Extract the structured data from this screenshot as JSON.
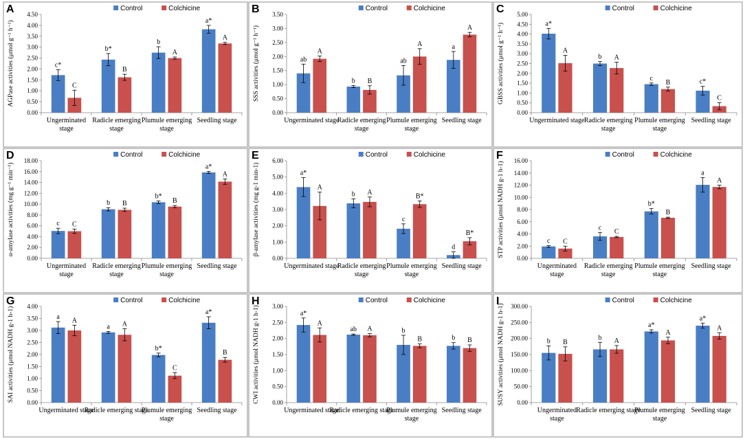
{
  "figure": {
    "colors": {
      "control": "#4a7ec4",
      "colchicine": "#c8504d",
      "axis": "#888888",
      "frame": "#8c8c8c"
    },
    "legend": {
      "control_label": "Control",
      "colchicine_label": "Colchicine"
    }
  },
  "chart_data": [
    {
      "panel": "A",
      "type": "bar",
      "ylabel": "AGPase activities (μmol g⁻¹ h⁻¹)",
      "ylim": [
        0,
        4.5
      ],
      "ystep": 0.5,
      "ydecimals": 2,
      "categories": [
        [
          "Ungerminated",
          "stage"
        ],
        [
          "Radicle emerging",
          "stage"
        ],
        [
          "Plumule emerging",
          "stage"
        ],
        [
          "Seedling stage"
        ]
      ],
      "series": [
        {
          "name": "Control",
          "values": [
            1.72,
            2.43,
            2.75,
            3.82
          ],
          "errors": [
            0.25,
            0.28,
            0.27,
            0.18
          ],
          "labels": [
            "c*",
            "b*",
            "b",
            "a*"
          ]
        },
        {
          "name": "Colchicine",
          "values": [
            0.68,
            1.62,
            2.5,
            3.17
          ],
          "errors": [
            0.35,
            0.14,
            0.05,
            0.05
          ],
          "labels": [
            "C",
            "B",
            "A",
            "A"
          ]
        }
      ]
    },
    {
      "panel": "B",
      "type": "bar",
      "ylabel": "SSS activities (μmol g⁻¹ h⁻¹)",
      "ylim": [
        0,
        3.5
      ],
      "ystep": 0.5,
      "ydecimals": 2,
      "categories": [
        [
          "Ungerminated stage"
        ],
        [
          "Radicle emerging",
          "stage"
        ],
        [
          "Plumule emerging",
          "stage"
        ],
        [
          "Seedling stage"
        ]
      ],
      "series": [
        {
          "name": "Control",
          "values": [
            1.4,
            0.93,
            1.33,
            1.88
          ],
          "errors": [
            0.33,
            0.04,
            0.35,
            0.3
          ],
          "labels": [
            "ab",
            "b",
            "ab",
            "a"
          ]
        },
        {
          "name": "Colchicine",
          "values": [
            1.92,
            0.81,
            2.0,
            2.78
          ],
          "errors": [
            0.1,
            0.15,
            0.28,
            0.08
          ],
          "labels": [
            "A",
            "B",
            "A",
            "A"
          ]
        }
      ]
    },
    {
      "panel": "C",
      "type": "bar",
      "ylabel": "GBSS activities (μmol g⁻¹ h⁻¹)",
      "ylim": [
        0,
        5
      ],
      "ystep": 0.5,
      "ydecimals": 2,
      "categories": [
        [
          "Ungerminated stage"
        ],
        [
          "Radicle emerging",
          "stage"
        ],
        [
          "Plumule emerging",
          "stage"
        ],
        [
          "Seedling stage"
        ]
      ],
      "series": [
        {
          "name": "Control",
          "values": [
            4.02,
            2.5,
            1.45,
            1.12
          ],
          "errors": [
            0.27,
            0.1,
            0.06,
            0.22
          ],
          "labels": [
            "a*",
            "b",
            "c",
            "c*"
          ]
        },
        {
          "name": "Colchicine",
          "values": [
            2.52,
            2.27,
            1.2,
            0.33
          ],
          "errors": [
            0.4,
            0.3,
            0.1,
            0.18
          ],
          "labels": [
            "A",
            "A",
            "B",
            "C"
          ]
        }
      ]
    },
    {
      "panel": "D",
      "type": "bar",
      "ylabel": "α-amylase activities (mg g⁻¹ min⁻¹)",
      "ylim": [
        0,
        18
      ],
      "ystep": 2,
      "ydecimals": 2,
      "categories": [
        [
          "Ungerminated",
          "stage"
        ],
        [
          "Radicle emerging",
          "stage"
        ],
        [
          "Plumule emerging",
          "stage"
        ],
        [
          "Seedling stage"
        ]
      ],
      "series": [
        {
          "name": "Control",
          "values": [
            5.05,
            9.05,
            10.35,
            15.85
          ],
          "errors": [
            0.5,
            0.3,
            0.25,
            0.2
          ],
          "labels": [
            "c",
            "b",
            "b*",
            "a*"
          ]
        },
        {
          "name": "Colchicine",
          "values": [
            5.0,
            8.95,
            9.55,
            14.15
          ],
          "errors": [
            0.4,
            0.3,
            0.2,
            0.5
          ],
          "labels": [
            "C",
            "B",
            "B",
            "A"
          ]
        }
      ]
    },
    {
      "panel": "E",
      "type": "bar",
      "ylabel": "β-amylase activities (mg g-1 min-1)",
      "ylim": [
        0,
        6
      ],
      "ystep": 1,
      "ydecimals": 2,
      "categories": [
        [
          "Ungerminated stage"
        ],
        [
          "Radicle emerging",
          "stage"
        ],
        [
          "Plumule emerging",
          "stage"
        ],
        [
          "Seedling stage"
        ]
      ],
      "series": [
        {
          "name": "Control",
          "values": [
            4.38,
            3.38,
            1.82,
            0.2
          ],
          "errors": [
            0.58,
            0.28,
            0.3,
            0.2
          ],
          "labels": [
            "a*",
            "b",
            "c",
            "d"
          ]
        },
        {
          "name": "Colchicine",
          "values": [
            3.22,
            3.47,
            3.33,
            1.05
          ],
          "errors": [
            0.85,
            0.3,
            0.2,
            0.22
          ],
          "labels": [
            "A",
            "A",
            "B*",
            "B*"
          ]
        }
      ]
    },
    {
      "panel": "F",
      "type": "bar",
      "ylabel": "STP activities (μmol NADH g-1 h-1)",
      "ylim": [
        0,
        16
      ],
      "ystep": 2,
      "ydecimals": 2,
      "categories": [
        [
          "Ungerminated",
          "stage"
        ],
        [
          "Radicle emerging",
          "stage"
        ],
        [
          "Plumule emerging",
          "stage"
        ],
        [
          "Seedling stage"
        ]
      ],
      "series": [
        {
          "name": "Control",
          "values": [
            1.95,
            3.6,
            7.7,
            12.05
          ],
          "errors": [
            0.15,
            0.65,
            0.45,
            1.2
          ],
          "labels": [
            "c",
            "c",
            "b*",
            "a"
          ]
        },
        {
          "name": "Colchicine",
          "values": [
            1.6,
            3.5,
            6.65,
            11.7
          ],
          "errors": [
            0.4,
            0.1,
            0.1,
            0.3
          ],
          "labels": [
            "C",
            "C",
            "B",
            "A"
          ]
        }
      ]
    },
    {
      "panel": "G",
      "type": "bar",
      "ylabel": "SAI activities (μmol NADH g-1 h-1)",
      "ylim": [
        0,
        4
      ],
      "ystep": 0.5,
      "ydecimals": 2,
      "categories": [
        [
          "Ungerminated stage"
        ],
        [
          "Radicle emerging stage"
        ],
        [
          "Plumule emerging",
          "stage"
        ],
        [
          "Seedling stage"
        ]
      ],
      "series": [
        {
          "name": "Control",
          "values": [
            3.12,
            2.92,
            1.98,
            3.32
          ],
          "errors": [
            0.25,
            0.04,
            0.08,
            0.25
          ],
          "labels": [
            "a",
            "a",
            "b*",
            "a*"
          ]
        },
        {
          "name": "Colchicine",
          "values": [
            3.0,
            2.82,
            1.12,
            1.78
          ],
          "errors": [
            0.22,
            0.25,
            0.12,
            0.1
          ],
          "labels": [
            "A",
            "A",
            "C",
            "B"
          ]
        }
      ]
    },
    {
      "panel": "H",
      "type": "bar",
      "ylabel": "CWI activities (μmol NADH g-1 h-1)",
      "ylim": [
        0,
        3
      ],
      "ystep": 0.5,
      "ydecimals": 2,
      "categories": [
        [
          "Ungerminated stage"
        ],
        [
          "Radicle emerging stage"
        ],
        [
          "Plumule emerging",
          "stage"
        ],
        [
          "Seedling stage"
        ]
      ],
      "series": [
        {
          "name": "Control",
          "values": [
            2.42,
            2.12,
            1.8,
            1.77
          ],
          "errors": [
            0.22,
            0.02,
            0.3,
            0.1
          ],
          "labels": [
            "a*",
            "ab",
            "b",
            "b"
          ]
        },
        {
          "name": "Colchicine",
          "values": [
            2.11,
            2.1,
            1.77,
            1.7
          ],
          "errors": [
            0.22,
            0.05,
            0.06,
            0.1
          ],
          "labels": [
            "A",
            "A",
            "B",
            "B"
          ]
        }
      ]
    },
    {
      "panel": "I",
      "type": "bar",
      "ylabel": "SUSY activities (μmol NADH g-1 h-1)",
      "ylim": [
        0,
        300
      ],
      "ystep": 50,
      "ydecimals": 2,
      "categories": [
        [
          "Ungerminated",
          "stage"
        ],
        [
          "Radicle emerging stage"
        ],
        [
          "Plumule emerging",
          "stage"
        ],
        [
          "Seedling stage"
        ]
      ],
      "series": [
        {
          "name": "Control",
          "values": [
            155,
            166,
            222,
            240
          ],
          "errors": [
            22,
            22,
            5,
            8
          ],
          "labels": [
            "b",
            "b",
            "a*",
            "a*"
          ]
        },
        {
          "name": "Colchicine",
          "values": [
            152,
            166,
            194,
            208
          ],
          "errors": [
            22,
            12,
            10,
            10
          ],
          "labels": [
            "B",
            "A",
            "A",
            "A"
          ]
        }
      ]
    }
  ]
}
